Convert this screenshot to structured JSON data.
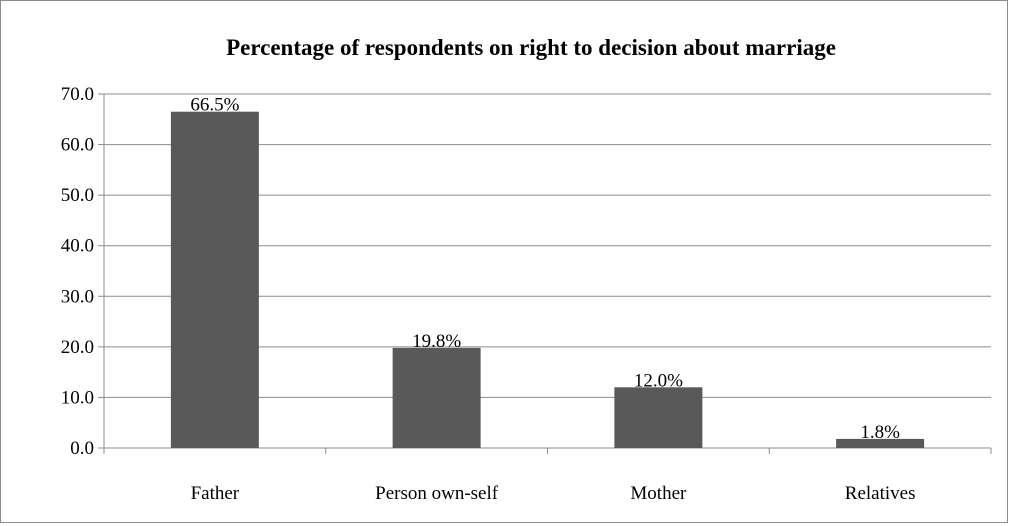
{
  "chart_data": {
    "type": "bar",
    "title": "Percentage of respondents on right to decision about marriage",
    "categories": [
      "Father",
      "Person own-self",
      "Mother",
      "Relatives"
    ],
    "values": [
      66.5,
      19.8,
      12.0,
      1.8
    ],
    "data_labels": [
      "66.5%",
      "19.8%",
      "12.0%",
      "1.8%"
    ],
    "y_ticks": [
      "0.0",
      "10.0",
      "20.0",
      "30.0",
      "40.0",
      "50.0",
      "60.0",
      "70.0"
    ],
    "ylim": [
      0,
      70
    ],
    "grid": true,
    "legend": "none",
    "colors": {
      "bar": "#595959",
      "grid": "#8c8c8c",
      "axis": "#8c8c8c"
    }
  }
}
